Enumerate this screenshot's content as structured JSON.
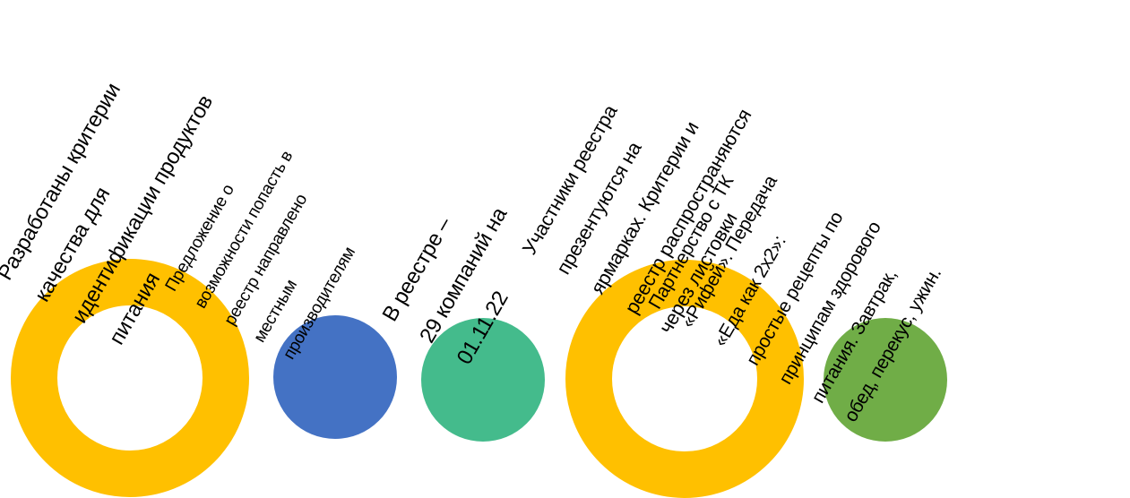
{
  "items": [
    {
      "shape": "ring",
      "color": "#FFC000",
      "lines": [
        "Разработаны критерии",
        "качества для",
        "идентификации продуктов",
        "питания"
      ]
    },
    {
      "shape": "disc",
      "color": "#4472C4",
      "lines": [
        "Предложение о",
        "возможности попасть в",
        "реестр направлено",
        "местным",
        "производителям"
      ]
    },
    {
      "shape": "disc",
      "color": "#44BB8C",
      "lines": [
        "В реестре –",
        "29 компаний на",
        "01.11.22"
      ]
    },
    {
      "shape": "ring",
      "color": "#FFC000",
      "lines": [
        "Участники реестра",
        "презентуются на",
        "ярмарках. Критерии и",
        "реестр распространяются",
        "через листовки"
      ]
    },
    {
      "shape": "disc",
      "color": "#70AD47",
      "lines": [
        "Партнерство с ТК",
        "«Рифей». Передача",
        "«Еда как 2х2»:",
        "простые рецепты по",
        "принципам здорового",
        "питания. Завтрак,",
        "обед, перекус, ужин."
      ]
    }
  ]
}
